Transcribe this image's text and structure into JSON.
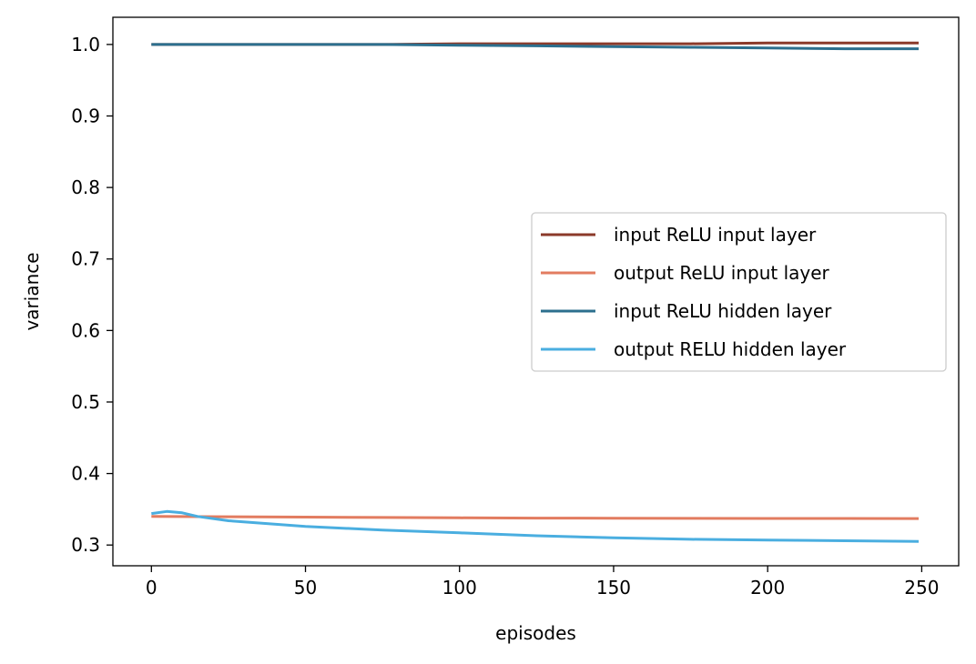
{
  "chart_data": {
    "type": "line",
    "title": "",
    "xlabel": "episodes",
    "ylabel": "variance",
    "xlim": [
      -12.5,
      262
    ],
    "ylim": [
      0.271,
      1.038
    ],
    "xticks": [
      0,
      50,
      100,
      150,
      200,
      250
    ],
    "xtick_labels": [
      "0",
      "50",
      "100",
      "150",
      "200",
      "250"
    ],
    "yticks": [
      0.3,
      0.4,
      0.5,
      0.6,
      0.7,
      0.8,
      0.9,
      1.0
    ],
    "ytick_labels": [
      "0.3",
      "0.4",
      "0.5",
      "0.6",
      "0.7",
      "0.8",
      "0.9",
      "1.0"
    ],
    "grid": false,
    "legend_position": "center-right",
    "series": [
      {
        "name": "input ReLU input layer",
        "color": "#8b3a2a",
        "x": [
          0,
          25,
          50,
          75,
          100,
          125,
          150,
          175,
          200,
          225,
          249
        ],
        "y": [
          1.0,
          1.0,
          1.0,
          1.0,
          1.001,
          1.001,
          1.001,
          1.001,
          1.002,
          1.002,
          1.002
        ]
      },
      {
        "name": "output ReLU input layer",
        "color": "#e27c60",
        "x": [
          0,
          25,
          50,
          75,
          100,
          125,
          150,
          175,
          200,
          225,
          249
        ],
        "y": [
          0.34,
          0.3395,
          0.339,
          0.3385,
          0.338,
          0.3377,
          0.3375,
          0.3373,
          0.3372,
          0.3371,
          0.337
        ]
      },
      {
        "name": "input ReLU hidden layer",
        "color": "#2c6f8e",
        "x": [
          0,
          25,
          50,
          75,
          100,
          125,
          150,
          175,
          200,
          225,
          249
        ],
        "y": [
          1.0,
          1.0,
          1.0,
          1.0,
          0.999,
          0.998,
          0.997,
          0.996,
          0.995,
          0.994,
          0.994
        ]
      },
      {
        "name": "output RELU hidden layer",
        "color": "#4aaee0",
        "x": [
          0,
          5,
          10,
          15,
          25,
          50,
          75,
          100,
          125,
          150,
          175,
          200,
          225,
          249
        ],
        "y": [
          0.344,
          0.347,
          0.345,
          0.34,
          0.334,
          0.326,
          0.321,
          0.317,
          0.313,
          0.31,
          0.308,
          0.307,
          0.306,
          0.305
        ]
      }
    ]
  }
}
